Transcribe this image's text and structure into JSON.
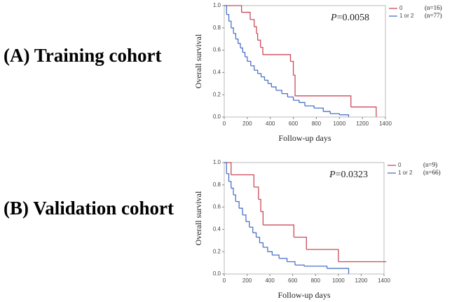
{
  "chart_data": [
    {
      "type": "step",
      "panel_label": "(A) Training cohort",
      "xlabel": "Follow-up days",
      "ylabel": "Overall survival",
      "p_symbol": "P",
      "p_value": "=0.0058",
      "xlim": [
        0,
        1400
      ],
      "ylim": [
        0,
        1
      ],
      "xticks": [
        0,
        200,
        400,
        600,
        800,
        1000,
        1200,
        1400
      ],
      "yticks": [
        {
          "value": 0,
          "label": "0.0"
        },
        {
          "value": 0.2,
          "label": "0.2"
        },
        {
          "value": 0.4,
          "label": "0.4"
        },
        {
          "value": 0.6,
          "label": "0.6"
        },
        {
          "value": 0.8,
          "label": "0.8"
        },
        {
          "value": 1,
          "label": "1.0"
        }
      ],
      "series": [
        {
          "name": "0",
          "n_label": "(n=16)",
          "color": "#cc4a5a",
          "x": [
            0,
            150,
            225,
            260,
            280,
            290,
            315,
            335,
            575,
            600,
            615,
            1100,
            1320
          ],
          "values": [
            1,
            0.94,
            0.875,
            0.81,
            0.75,
            0.69,
            0.625,
            0.56,
            0.5,
            0.375,
            0.19,
            0.09,
            0
          ]
        },
        {
          "name": "1 or 2",
          "n_label": "(n=77)",
          "color": "#4a72c8",
          "x": [
            0,
            20,
            40,
            60,
            80,
            100,
            120,
            140,
            160,
            180,
            200,
            230,
            260,
            290,
            320,
            350,
            380,
            410,
            450,
            500,
            550,
            600,
            650,
            700,
            780,
            860,
            920,
            1000,
            1080
          ],
          "values": [
            1,
            0.92,
            0.86,
            0.8,
            0.75,
            0.7,
            0.66,
            0.62,
            0.58,
            0.54,
            0.5,
            0.46,
            0.42,
            0.39,
            0.36,
            0.33,
            0.3,
            0.27,
            0.24,
            0.21,
            0.18,
            0.15,
            0.13,
            0.1,
            0.08,
            0.05,
            0.03,
            0.02,
            0
          ]
        }
      ]
    },
    {
      "type": "step",
      "panel_label": "(B) Validation cohort",
      "xlabel": "Follow-up days",
      "ylabel": "Overall survival",
      "p_symbol": "P",
      "p_value": "=0.0323",
      "xlim": [
        0,
        1400
      ],
      "ylim": [
        0,
        1
      ],
      "xticks": [
        0,
        200,
        400,
        600,
        800,
        1000,
        1200,
        1400
      ],
      "yticks": [
        {
          "value": 0,
          "label": "0.0"
        },
        {
          "value": 0.2,
          "label": "0.2"
        },
        {
          "value": 0.4,
          "label": "0.4"
        },
        {
          "value": 0.6,
          "label": "0.6"
        },
        {
          "value": 0.8,
          "label": "0.8"
        },
        {
          "value": 1,
          "label": "1.0"
        }
      ],
      "series": [
        {
          "name": "0",
          "n_label": "(n=9)",
          "color": "#cc4a5a",
          "x": [
            0,
            60,
            260,
            300,
            320,
            340,
            610,
            720,
            1000,
            1420
          ],
          "values": [
            1,
            0.89,
            0.78,
            0.67,
            0.56,
            0.44,
            0.33,
            0.22,
            0.11,
            0.11
          ]
        },
        {
          "name": "1 or 2",
          "n_label": "(n=66)",
          "color": "#4a72c8",
          "x": [
            0,
            20,
            40,
            60,
            80,
            100,
            130,
            160,
            190,
            220,
            250,
            280,
            310,
            340,
            380,
            420,
            480,
            550,
            620,
            700,
            800,
            900,
            1000,
            1090
          ],
          "values": [
            1,
            0.9,
            0.83,
            0.77,
            0.71,
            0.65,
            0.59,
            0.53,
            0.47,
            0.42,
            0.37,
            0.33,
            0.28,
            0.24,
            0.2,
            0.17,
            0.14,
            0.11,
            0.08,
            0.07,
            0.07,
            0.05,
            0.05,
            0
          ]
        }
      ]
    }
  ]
}
